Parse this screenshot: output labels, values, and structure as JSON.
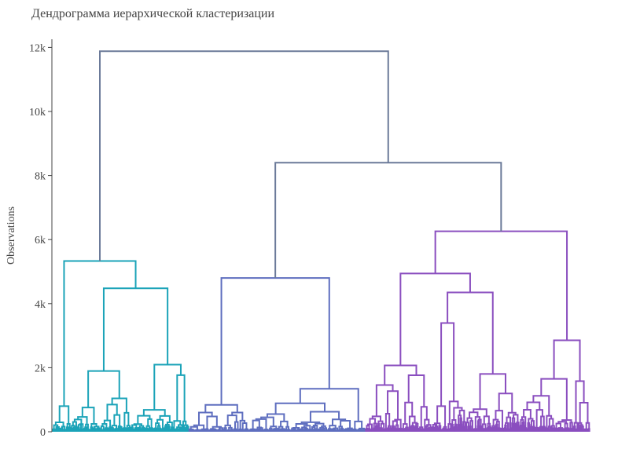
{
  "chart_data": {
    "type": "dendrogram",
    "title": "Дендрограмма иерархической кластеризации",
    "xlabel": "",
    "ylabel": "Observations",
    "ylim": [
      0,
      12500
    ],
    "y_ticks": [
      {
        "value": 0,
        "label": "0"
      },
      {
        "value": 2000,
        "label": "2k"
      },
      {
        "value": 4000,
        "label": "4k"
      },
      {
        "value": 6000,
        "label": "6k"
      },
      {
        "value": 8000,
        "label": "8k"
      },
      {
        "value": 10000,
        "label": "10k"
      },
      {
        "value": 12000,
        "label": "12k"
      }
    ],
    "grid": false,
    "root_color": "#6b7a99",
    "clusters": [
      {
        "color": "#1ba3b8",
        "merge_height": 5330
      },
      {
        "color": "#5e6ebf",
        "merge_height": 4800
      },
      {
        "color": "#8a4ebf",
        "merge_height": 6260
      }
    ],
    "upper_merges": [
      {
        "height": 8400,
        "children": [
          "cluster-2",
          "cluster-3"
        ]
      },
      {
        "height": 11880,
        "children": [
          "cluster-1",
          "merge-2-3"
        ]
      }
    ]
  }
}
